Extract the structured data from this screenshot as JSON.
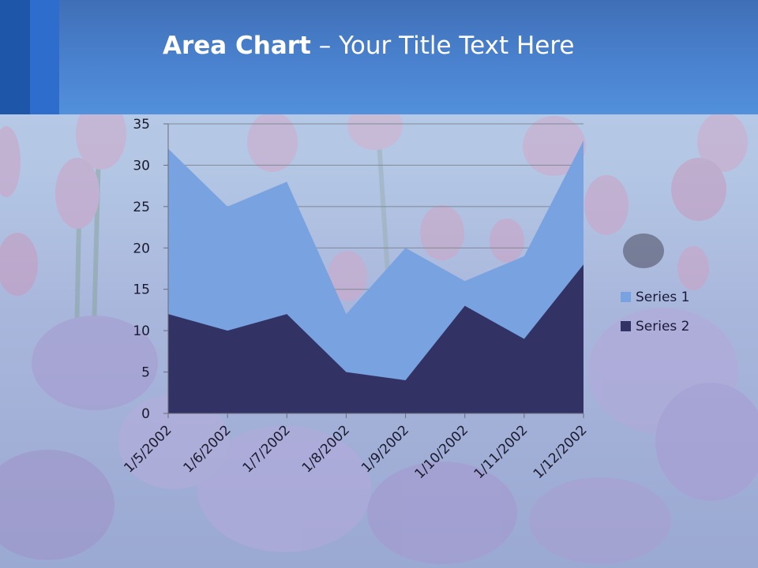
{
  "slide": {
    "title_bold": "Area Chart",
    "title_rest": " – Your Title Text Here"
  },
  "colors": {
    "header": "#4a82cf",
    "series1": "#78a3e0",
    "series2": "#323264"
  },
  "chart_data": {
    "type": "area",
    "x": [
      "1/5/2002",
      "1/6/2002",
      "1/7/2002",
      "1/8/2002",
      "1/9/2002",
      "1/10/2002",
      "1/11/2002",
      "1/12/2002"
    ],
    "series": [
      {
        "name": "Series 1",
        "values": [
          32,
          25,
          28,
          12,
          20,
          16,
          19,
          33
        ]
      },
      {
        "name": "Series 2",
        "values": [
          12,
          10,
          12,
          5,
          4,
          13,
          9,
          18
        ]
      }
    ],
    "ylim": [
      0,
      35
    ],
    "yticks": [
      "0",
      "5",
      "10",
      "15",
      "20",
      "25",
      "30",
      "35"
    ],
    "grid": true,
    "legend": "right"
  }
}
